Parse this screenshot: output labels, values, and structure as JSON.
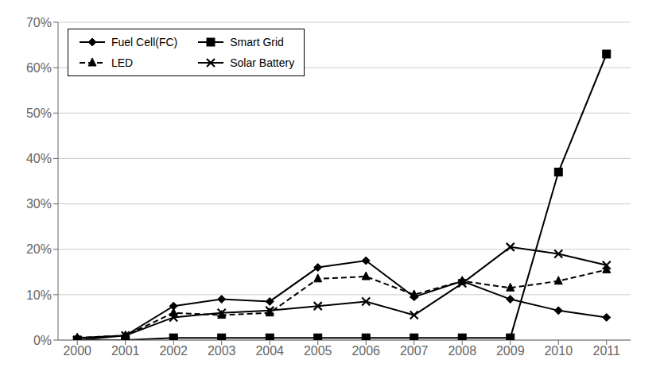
{
  "chart_data": {
    "type": "line",
    "x": [
      2000,
      2001,
      2002,
      2003,
      2004,
      2005,
      2006,
      2007,
      2008,
      2009,
      2010,
      2011
    ],
    "series": [
      {
        "name": "Fuel Cell(FC)",
        "color": "#000000",
        "marker": "diamond",
        "line_style": "solid",
        "values": [
          0.005,
          0.01,
          0.075,
          0.09,
          0.085,
          0.16,
          0.175,
          0.095,
          0.13,
          0.09,
          0.065,
          0.05
        ]
      },
      {
        "name": "Smart Grid",
        "color": "#000000",
        "marker": "square",
        "line_style": "solid",
        "values": [
          0.0,
          0.0,
          0.005,
          0.005,
          0.005,
          0.005,
          0.005,
          0.005,
          0.005,
          0.005,
          0.37,
          0.63
        ]
      },
      {
        "name": "LED",
        "color": "#000000",
        "marker": "triangle",
        "line_style": "dashed",
        "values": [
          0.005,
          0.01,
          0.06,
          0.055,
          0.06,
          0.135,
          0.14,
          0.1,
          0.13,
          0.115,
          0.13,
          0.155
        ]
      },
      {
        "name": "Solar Battery",
        "color": "#000000",
        "marker": "x",
        "line_style": "solid",
        "values": [
          0.0,
          0.01,
          0.05,
          0.06,
          0.065,
          0.075,
          0.085,
          0.055,
          0.125,
          0.205,
          0.19,
          0.165
        ]
      }
    ],
    "xlim": [
      1999.6,
      2011.5
    ],
    "xticks": [
      2000,
      2001,
      2002,
      2003,
      2004,
      2005,
      2006,
      2007,
      2008,
      2009,
      2010,
      2011
    ],
    "ylim": [
      0.0,
      0.7
    ],
    "yticks": [
      {
        "value": 0.0,
        "label": "0%"
      },
      {
        "value": 0.1,
        "label": "10%"
      },
      {
        "value": 0.2,
        "label": "20%"
      },
      {
        "value": 0.3,
        "label": "30%"
      },
      {
        "value": 0.4,
        "label": "40%"
      },
      {
        "value": 0.5,
        "label": "50%"
      },
      {
        "value": 0.6,
        "label": "60%"
      },
      {
        "value": 0.7,
        "label": "70%"
      }
    ],
    "grid": "y",
    "legend": "upper left"
  }
}
